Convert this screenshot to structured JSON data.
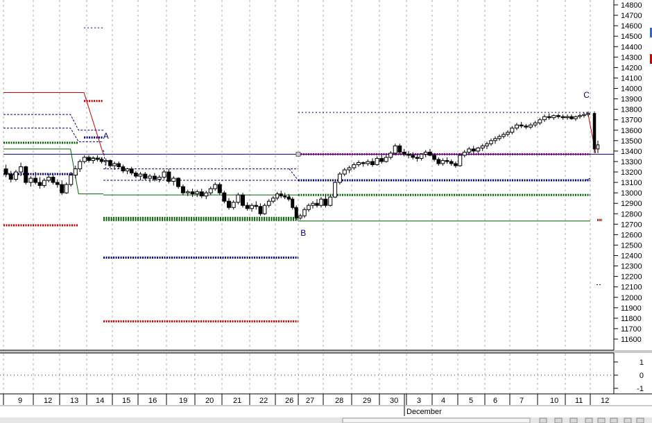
{
  "chart_data": {
    "type": "candlestick",
    "title": "",
    "y_axis": {
      "ticks": [
        14800,
        14700,
        14600,
        14500,
        14400,
        14300,
        14200,
        14100,
        14000,
        13900,
        13800,
        13700,
        13600,
        13500,
        13400,
        13300,
        13200,
        13100,
        13000,
        12900,
        12800,
        12700,
        12600,
        12500,
        12400,
        12300,
        12200,
        12100,
        12000,
        11900,
        11800,
        11700,
        11600
      ],
      "range": [
        11450,
        14850
      ]
    },
    "sub_y_axis": {
      "ticks": [
        1,
        0,
        -1
      ],
      "range": [
        -1.4,
        1.4
      ]
    },
    "x_axis": {
      "days": [
        "9",
        "12",
        "13",
        "14",
        "15",
        "16",
        "19",
        "20",
        "21",
        "22",
        "26",
        "27",
        "28",
        "29",
        "30",
        "3",
        "4",
        "5",
        "6",
        "7",
        "10",
        "11",
        "12"
      ],
      "month_label": "December",
      "month_start_index": 15
    },
    "price_series": [
      {
        "day": "9",
        "ohlc": [
          [
            13230,
            13270,
            13150,
            13180
          ],
          [
            13180,
            13210,
            13100,
            13130
          ],
          [
            13130,
            13220,
            13110,
            13200
          ],
          [
            13200,
            13290,
            13160,
            13250
          ],
          [
            13250,
            13260,
            13080,
            13100
          ],
          [
            13100,
            13160,
            13060,
            13140
          ]
        ]
      },
      {
        "day": "12",
        "ohlc": [
          [
            13140,
            13200,
            13080,
            13100
          ],
          [
            13100,
            13150,
            13040,
            13070
          ],
          [
            13070,
            13140,
            13050,
            13120
          ],
          [
            13120,
            13180,
            13100,
            13150
          ],
          [
            13150,
            13170,
            13080,
            13100
          ],
          [
            13100,
            13130,
            13050,
            13080
          ]
        ]
      },
      {
        "day": "13",
        "ohlc": [
          [
            13080,
            13120,
            12980,
            13000
          ],
          [
            13000,
            13100,
            12990,
            13080
          ],
          [
            13080,
            13200,
            13060,
            13170
          ],
          [
            13170,
            13260,
            13140,
            13230
          ],
          [
            13230,
            13320,
            13200,
            13300
          ],
          [
            13300,
            13360,
            13280,
            13340
          ]
        ]
      },
      {
        "day": "14",
        "ohlc": [
          [
            13340,
            13360,
            13290,
            13310
          ],
          [
            13310,
            13350,
            13280,
            13330
          ],
          [
            13330,
            13360,
            13300,
            13320
          ],
          [
            13320,
            13340,
            13280,
            13300
          ],
          [
            13300,
            13330,
            13270,
            13310
          ],
          [
            13310,
            13320,
            13240,
            13260
          ]
        ]
      },
      {
        "day": "15",
        "ohlc": [
          [
            13260,
            13300,
            13220,
            13280
          ],
          [
            13280,
            13300,
            13230,
            13250
          ],
          [
            13250,
            13270,
            13190,
            13210
          ],
          [
            13210,
            13240,
            13180,
            13230
          ],
          [
            13230,
            13250,
            13170,
            13190
          ],
          [
            13190,
            13210,
            13140,
            13160
          ]
        ]
      },
      {
        "day": "16",
        "ohlc": [
          [
            13160,
            13200,
            13120,
            13180
          ],
          [
            13180,
            13200,
            13120,
            13140
          ],
          [
            13140,
            13180,
            13100,
            13160
          ],
          [
            13160,
            13190,
            13110,
            13130
          ],
          [
            13130,
            13170,
            13100,
            13150
          ],
          [
            13150,
            13220,
            13130,
            13200
          ]
        ]
      },
      {
        "day": "19",
        "ohlc": [
          [
            13200,
            13230,
            13090,
            13110
          ],
          [
            13110,
            13160,
            13070,
            13140
          ],
          [
            13140,
            13150,
            13040,
            13060
          ],
          [
            13060,
            13080,
            12980,
            13000
          ],
          [
            13000,
            13030,
            12970,
            13010
          ],
          [
            13010,
            13040,
            12960,
            12990
          ]
        ]
      },
      {
        "day": "20",
        "ohlc": [
          [
            12990,
            13030,
            12960,
            13010
          ],
          [
            13010,
            13040,
            12950,
            12970
          ],
          [
            12970,
            13020,
            12940,
            13000
          ],
          [
            13000,
            13060,
            12980,
            13040
          ],
          [
            13040,
            13100,
            13020,
            13080
          ],
          [
            13080,
            13100,
            12980,
            13000
          ]
        ]
      },
      {
        "day": "21",
        "ohlc": [
          [
            13000,
            13020,
            12900,
            12920
          ],
          [
            12920,
            12950,
            12840,
            12860
          ],
          [
            12860,
            12930,
            12840,
            12910
          ],
          [
            12910,
            13000,
            12890,
            12980
          ],
          [
            12980,
            13000,
            12860,
            12880
          ],
          [
            12880,
            12910,
            12830,
            12850
          ]
        ]
      },
      {
        "day": "22",
        "ohlc": [
          [
            12850,
            12900,
            12820,
            12880
          ],
          [
            12880,
            12920,
            12840,
            12870
          ],
          [
            12870,
            12900,
            12780,
            12800
          ],
          [
            12800,
            12900,
            12790,
            12880
          ],
          [
            12880,
            12940,
            12860,
            12920
          ],
          [
            12920,
            12970,
            12900,
            12950
          ]
        ]
      },
      {
        "day": "26",
        "ohlc": [
          [
            12950,
            13010,
            12930,
            12990
          ],
          [
            12990,
            13020,
            12950,
            12970
          ],
          [
            12970,
            13000,
            12940,
            12960
          ],
          [
            12960,
            12990,
            12920,
            12940
          ],
          [
            12940,
            12960,
            12840,
            12860
          ],
          [
            12860,
            12880,
            12740,
            12760
          ]
        ]
      },
      {
        "day": "27",
        "ohlc": [
          [
            12760,
            12800,
            12740,
            12780
          ],
          [
            12780,
            12860,
            12760,
            12840
          ],
          [
            12840,
            12900,
            12820,
            12880
          ],
          [
            12880,
            12920,
            12850,
            12900
          ],
          [
            12900,
            12940,
            12860,
            12880
          ],
          [
            12880,
            12960,
            12860,
            12940
          ]
        ]
      },
      {
        "day": "28",
        "ohlc": [
          [
            12940,
            12990,
            12860,
            12880
          ],
          [
            12880,
            12980,
            12870,
            12960
          ],
          [
            12960,
            13120,
            12950,
            13100
          ],
          [
            13100,
            13200,
            13080,
            13180
          ],
          [
            13180,
            13240,
            13160,
            13220
          ],
          [
            13220,
            13260,
            13190,
            13240
          ]
        ]
      },
      {
        "day": "29",
        "ohlc": [
          [
            13240,
            13290,
            13220,
            13270
          ],
          [
            13270,
            13310,
            13250,
            13290
          ],
          [
            13290,
            13300,
            13250,
            13280
          ],
          [
            13280,
            13320,
            13260,
            13300
          ],
          [
            13300,
            13330,
            13250,
            13270
          ],
          [
            13270,
            13350,
            13260,
            13330
          ]
        ]
      },
      {
        "day": "30",
        "ohlc": [
          [
            13330,
            13360,
            13280,
            13300
          ],
          [
            13300,
            13360,
            13290,
            13340
          ],
          [
            13340,
            13400,
            13320,
            13380
          ],
          [
            13380,
            13470,
            13360,
            13450
          ],
          [
            13450,
            13470,
            13370,
            13390
          ],
          [
            13390,
            13420,
            13350,
            13370
          ]
        ]
      },
      {
        "day": "3",
        "ohlc": [
          [
            13370,
            13400,
            13330,
            13360
          ],
          [
            13360,
            13390,
            13320,
            13340
          ],
          [
            13340,
            13370,
            13300,
            13330
          ],
          [
            13330,
            13380,
            13310,
            13370
          ],
          [
            13370,
            13410,
            13340,
            13390
          ],
          [
            13390,
            13420,
            13350,
            13360
          ]
        ]
      },
      {
        "day": "4",
        "ohlc": [
          [
            13360,
            13380,
            13300,
            13320
          ],
          [
            13320,
            13340,
            13260,
            13280
          ],
          [
            13280,
            13330,
            13260,
            13310
          ],
          [
            13310,
            13340,
            13280,
            13300
          ],
          [
            13300,
            13320,
            13260,
            13280
          ],
          [
            13280,
            13300,
            13240,
            13260
          ]
        ]
      },
      {
        "day": "5",
        "ohlc": [
          [
            13260,
            13380,
            13250,
            13360
          ],
          [
            13360,
            13410,
            13340,
            13390
          ],
          [
            13390,
            13440,
            13370,
            13420
          ],
          [
            13420,
            13450,
            13380,
            13400
          ],
          [
            13400,
            13440,
            13380,
            13430
          ],
          [
            13430,
            13470,
            13400,
            13450
          ]
        ]
      },
      {
        "day": "6",
        "ohlc": [
          [
            13450,
            13490,
            13420,
            13470
          ],
          [
            13470,
            13520,
            13450,
            13500
          ],
          [
            13500,
            13540,
            13470,
            13520
          ],
          [
            13520,
            13560,
            13500,
            13540
          ],
          [
            13540,
            13580,
            13520,
            13560
          ],
          [
            13560,
            13600,
            13540,
            13580
          ]
        ]
      },
      {
        "day": "7",
        "ohlc": [
          [
            13580,
            13640,
            13560,
            13620
          ],
          [
            13620,
            13670,
            13600,
            13650
          ],
          [
            13650,
            13680,
            13620,
            13640
          ],
          [
            13640,
            13660,
            13610,
            13630
          ],
          [
            13630,
            13670,
            13610,
            13650
          ],
          [
            13650,
            13690,
            13630,
            13670
          ]
        ]
      },
      {
        "day": "10",
        "ohlc": [
          [
            13670,
            13720,
            13650,
            13700
          ],
          [
            13700,
            13750,
            13680,
            13730
          ],
          [
            13730,
            13760,
            13700,
            13720
          ],
          [
            13720,
            13750,
            13700,
            13740
          ],
          [
            13740,
            13760,
            13710,
            13730
          ],
          [
            13730,
            13750,
            13700,
            13720
          ]
        ]
      },
      {
        "day": "11",
        "ohlc": [
          [
            13720,
            13750,
            13700,
            13730
          ],
          [
            13730,
            13750,
            13700,
            13710
          ],
          [
            13710,
            13740,
            13690,
            13730
          ],
          [
            13730,
            13760,
            13710,
            13740
          ],
          [
            13740,
            13770,
            13720,
            13750
          ],
          [
            13750,
            13780,
            13730,
            13760
          ]
        ]
      },
      {
        "day": "12",
        "ohlc": [
          [
            13760,
            13780,
            13380,
            13420
          ],
          [
            13420,
            13500,
            13380,
            13460
          ]
        ]
      }
    ],
    "annotations": [
      {
        "text": "A",
        "x_index": 3.75,
        "y": 13520
      },
      {
        "text": "B",
        "x_index": 11.2,
        "y": 12590
      },
      {
        "text": "C",
        "x_index": 21.85,
        "y": 13910
      }
    ],
    "horizontal_lines": [
      {
        "y": 13370,
        "x_from": 0,
        "x_to": 23.5,
        "color": "#000066",
        "style": "solid"
      },
      {
        "y": 13370,
        "x_from": 11,
        "x_to": 22,
        "color": "#800080",
        "style": "dots"
      },
      {
        "y": 13770,
        "x_from": 11,
        "x_to": 22,
        "color": "#000080",
        "style": "dotted"
      },
      {
        "y": 13120,
        "x_from": 11,
        "x_to": 22,
        "color": "#000080",
        "style": "dots"
      },
      {
        "y": 12980,
        "x_from": 11,
        "x_to": 22,
        "color": "#006400",
        "style": "dots"
      },
      {
        "y": 12730,
        "x_from": 11,
        "x_to": 22,
        "color": "#006400",
        "style": "solid"
      },
      {
        "y": 13880,
        "x_from": 2.9,
        "x_to": 3.65,
        "color": "#cc0000",
        "style": "dots"
      },
      {
        "y": 13530,
        "x_from": 2.9,
        "x_to": 3.65,
        "color": "#000080",
        "style": "dots"
      },
      {
        "y": 13330,
        "x_from": 2.9,
        "x_to": 3.65,
        "color": "#006400",
        "style": "dots"
      },
      {
        "y": 14580,
        "x_from": 2.9,
        "x_to": 3.65,
        "color": "#000080",
        "style": "dotted"
      },
      {
        "y": 13230,
        "x_from": 3.65,
        "x_to": 11,
        "color": "#000080",
        "style": "dashed"
      },
      {
        "y": 13120,
        "x_from": 3.65,
        "x_to": 11,
        "color": "#000080",
        "style": "dashed"
      },
      {
        "y": 12980,
        "x_from": 3.65,
        "x_to": 11,
        "color": "#006400",
        "style": "solid"
      },
      {
        "y": 12760,
        "x_from": 3.65,
        "x_to": 11,
        "color": "#006400",
        "style": "dots"
      },
      {
        "y": 12740,
        "x_from": 3.65,
        "x_to": 11,
        "color": "#006400",
        "style": "dots"
      },
      {
        "y": 12380,
        "x_from": 3.65,
        "x_to": 11,
        "color": "#000080",
        "style": "dots"
      },
      {
        "y": 11770,
        "x_from": 3.65,
        "x_to": 11,
        "color": "#cc0000",
        "style": "dots"
      },
      {
        "y": 12690,
        "x_from": 0,
        "x_to": 2.7,
        "color": "#cc0000",
        "style": "dots"
      },
      {
        "y": 13180,
        "x_from": 0,
        "x_to": 2.7,
        "color": "#000080",
        "style": "dots"
      },
      {
        "y": 13480,
        "x_from": 0,
        "x_to": 2.7,
        "color": "#006400",
        "style": "dots"
      }
    ]
  }
}
